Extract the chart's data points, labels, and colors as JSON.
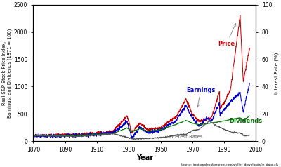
{
  "title_left": "Real S&P Stock Price Index,\nEarnings, and Dividends (1871 = 100)",
  "title_right": "Interest Rate (%)",
  "xlabel": "Year",
  "source": "Source: irrationalexuberance.com/shiller_downloads/ie_data.xls",
  "ylim_left": [
    0,
    2500
  ],
  "ylim_right": [
    0,
    100
  ],
  "xlim": [
    1870,
    2010
  ],
  "xticks": [
    1870,
    1890,
    1910,
    1930,
    1950,
    1970,
    1990,
    2010
  ],
  "yticks_left": [
    0,
    500,
    1000,
    1500,
    2000,
    2500
  ],
  "yticks_right": [
    0,
    20,
    40,
    60,
    80,
    100
  ],
  "label_price": "Price",
  "label_earnings": "Earnings",
  "label_dividends": "Dividends",
  "label_interest": "Interest Rates",
  "color_price": "#cc0000",
  "color_earnings": "#0000cc",
  "color_dividends": "#007700",
  "color_interest": "#555555",
  "bg_color": "#ffffff",
  "fig_bg": "#ffffff"
}
